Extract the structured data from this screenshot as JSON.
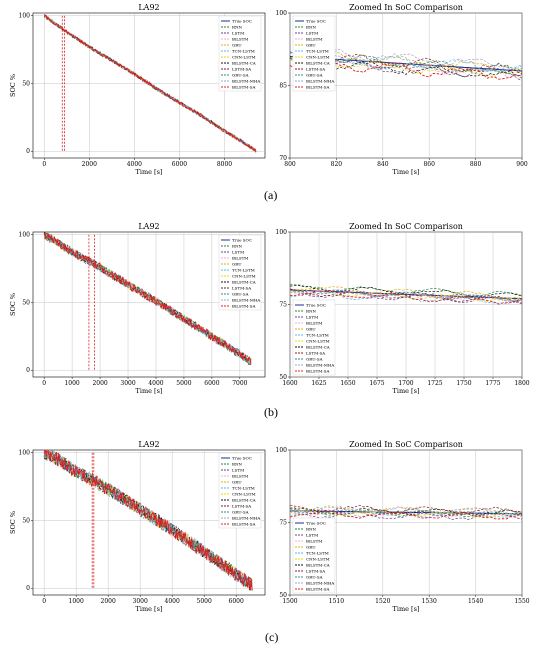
{
  "figure": {
    "captions": [
      "(a)",
      "(b)",
      "(c)"
    ]
  },
  "legend_labels": [
    "True SOC",
    "RNN",
    "LSTM",
    "BiLSTM",
    "GRU",
    "TCN-LSTM",
    "CNN-LSTM",
    "BiLSTM-CA",
    "LSTM-SA",
    "GRU-SA",
    "BiLSTM-MHA",
    "BiLSTM-SA"
  ],
  "colors": {
    "True SOC": "#1f2f8f",
    "RNN": "#1a8a3a",
    "LSTM": "#6a3f9a",
    "BiLSTM": "#f4a8c8",
    "GRU": "#e6a817",
    "TCN-LSTM": "#5ab4e8",
    "CNN-LSTM": "#e8d800",
    "BiLSTM-CA": "#111111",
    "LSTM-SA": "#8b1a1a",
    "GRU-SA": "#2e8b8b",
    "BiLSTM-MHA": "#9aa8d8",
    "BiLSTM-SA": "#e02020"
  },
  "chart_data": [
    {
      "id": "a-full",
      "type": "line",
      "title": "LA92",
      "xlabel": "Time [s]",
      "ylabel": "SOC %",
      "xlim": [
        -500,
        9800
      ],
      "ylim": [
        -5,
        102
      ],
      "xticks": [
        0,
        2000,
        4000,
        6000,
        8000
      ],
      "yticks": [
        0,
        50,
        100
      ],
      "grid": true,
      "legend": "top-right",
      "series": [
        {
          "name": "True SOC",
          "x": [
            0,
            500,
            1000,
            2000,
            3000,
            4000,
            5000,
            6000,
            7000,
            8000,
            9000,
            9400
          ],
          "y": [
            100,
            94,
            88,
            77,
            67,
            57,
            46,
            36,
            26,
            15,
            5,
            0
          ]
        }
      ],
      "zoom_window": [
        800,
        900
      ],
      "noise": "low"
    },
    {
      "id": "a-zoom",
      "type": "line",
      "title": "Zoomed In SoC Comparison",
      "xlabel": "Time [s]",
      "ylabel": "",
      "xlim": [
        800,
        900
      ],
      "ylim": [
        70,
        100
      ],
      "xticks": [
        800,
        820,
        840,
        860,
        880,
        900
      ],
      "yticks": [
        70,
        85,
        100
      ],
      "grid": true,
      "legend": "top-left",
      "series": [
        {
          "name": "True SOC",
          "x": [
            800,
            900
          ],
          "y": [
            91,
            88
          ]
        }
      ]
    },
    {
      "id": "b-full",
      "type": "line",
      "title": "LA92",
      "xlabel": "Time [s]",
      "ylabel": "SOC %",
      "xlim": [
        -400,
        7900
      ],
      "ylim": [
        -5,
        102
      ],
      "xticks": [
        0,
        1000,
        2000,
        3000,
        4000,
        5000,
        6000,
        7000
      ],
      "yticks": [
        0,
        50,
        100
      ],
      "grid": true,
      "legend": "top-right",
      "series": [
        {
          "name": "True SOC",
          "x": [
            0,
            500,
            1000,
            2000,
            3000,
            4000,
            5000,
            6000,
            7000,
            7400
          ],
          "y": [
            100,
            94,
            87,
            76,
            63,
            51,
            38,
            25,
            12,
            6
          ]
        }
      ],
      "zoom_window": [
        1600,
        1800
      ],
      "noise": "medium"
    },
    {
      "id": "b-zoom",
      "type": "line",
      "title": "Zoomed In SoC Comparison",
      "xlabel": "Time [s]",
      "ylabel": "",
      "xlim": [
        1600,
        1800
      ],
      "ylim": [
        50,
        100
      ],
      "xticks": [
        1600,
        1625,
        1650,
        1675,
        1700,
        1725,
        1750,
        1775,
        1800
      ],
      "yticks": [
        50,
        75,
        100
      ],
      "grid": true,
      "legend": "bottom-left",
      "series": [
        {
          "name": "True SOC",
          "x": [
            1600,
            1800
          ],
          "y": [
            80,
            77
          ]
        }
      ]
    },
    {
      "id": "c-full",
      "type": "line",
      "title": "LA92",
      "xlabel": "Time [s]",
      "ylabel": "SOC %",
      "xlim": [
        -350,
        6900
      ],
      "ylim": [
        -5,
        102
      ],
      "xticks": [
        0,
        1000,
        2000,
        3000,
        4000,
        5000,
        6000
      ],
      "yticks": [
        0,
        50,
        100
      ],
      "grid": true,
      "legend": "top-right",
      "series": [
        {
          "name": "True SOC",
          "x": [
            0,
            500,
            1000,
            1500,
            2000,
            3000,
            4000,
            5000,
            6000,
            6500
          ],
          "y": [
            100,
            94,
            86,
            80,
            73,
            58,
            43,
            27,
            10,
            2
          ]
        }
      ],
      "zoom_window": [
        1500,
        1550
      ],
      "noise": "high"
    },
    {
      "id": "c-zoom",
      "type": "line",
      "title": "Zoomed In SoC Comparison",
      "xlabel": "Time [s]",
      "ylabel": "",
      "xlim": [
        1500,
        1550
      ],
      "ylim": [
        50,
        100
      ],
      "xticks": [
        1500,
        1510,
        1520,
        1530,
        1540,
        1550
      ],
      "yticks": [
        50,
        75,
        100
      ],
      "grid": true,
      "legend": "bottom-left",
      "series": [
        {
          "name": "True SOC",
          "x": [
            1500,
            1550
          ],
          "y": [
            79,
            78
          ]
        }
      ]
    }
  ]
}
